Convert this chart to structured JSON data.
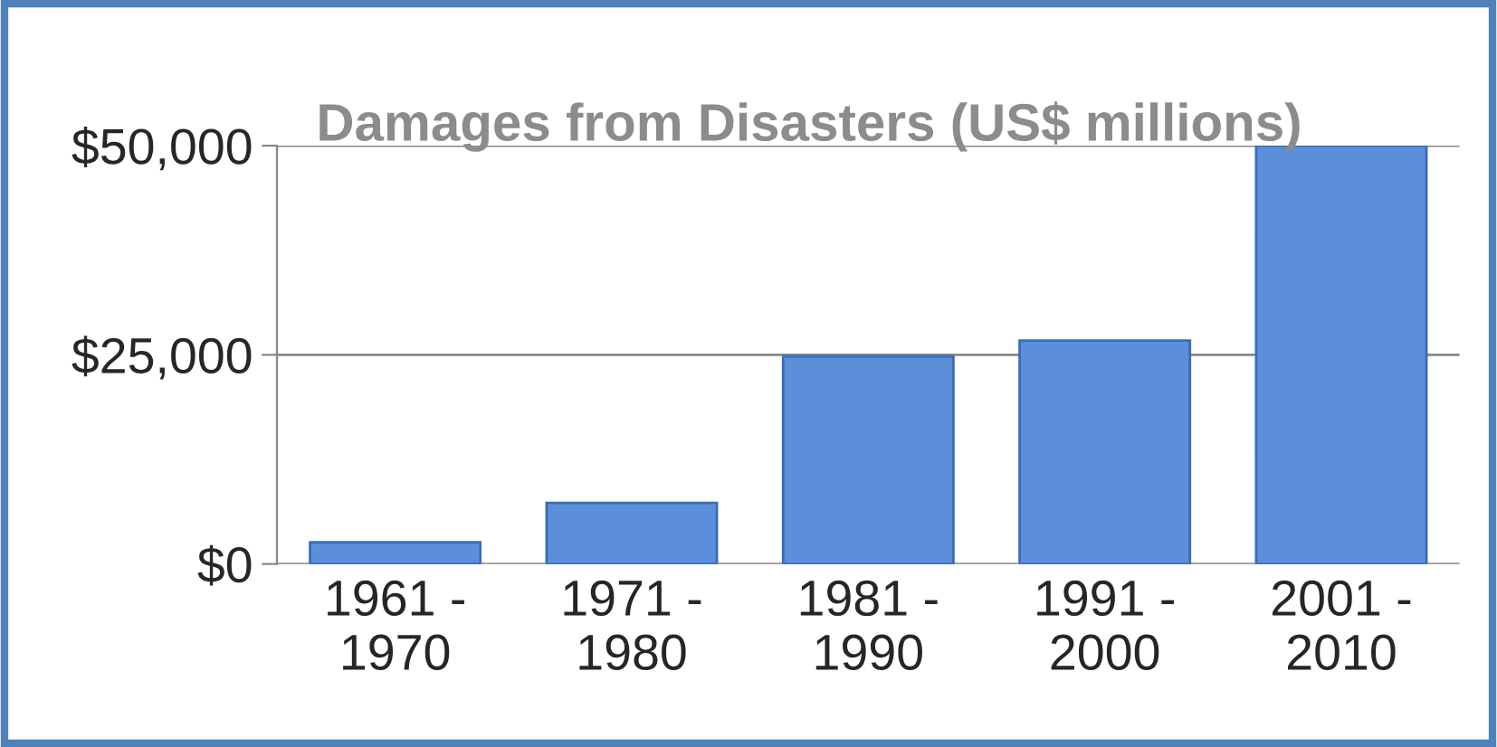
{
  "chart_data": {
    "type": "bar",
    "title": "Damages from Disasters (US$ millions)",
    "categories": [
      "1961 -\n1970",
      "1971 -\n1980",
      "1981 -\n1990",
      "1991 -\n2000",
      "2001 -\n2010"
    ],
    "values": [
      2600,
      7300,
      24800,
      26700,
      50000
    ],
    "color": "#5b8fd9",
    "ylim": [
      0,
      50000
    ],
    "yticks": [
      {
        "value": 0,
        "label": "$0"
      },
      {
        "value": 25000,
        "label": "$25,000"
      },
      {
        "value": 50000,
        "label": "$50,000"
      }
    ],
    "grid": "y"
  }
}
